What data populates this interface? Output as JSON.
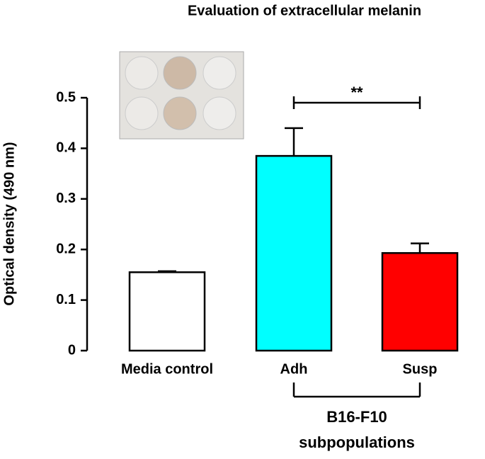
{
  "chart_data": {
    "type": "bar",
    "title": "Evaluation of extracellular melanin",
    "y_label": "Optical density (490 nm)",
    "categories": [
      "Media control",
      "Adh",
      "Susp"
    ],
    "values": [
      0.155,
      0.385,
      0.193
    ],
    "errors": [
      0.002,
      0.055,
      0.019
    ],
    "colors": [
      "#ffffff",
      "#00ffff",
      "#ff0000"
    ],
    "ylim": [
      0,
      0.5
    ],
    "yticks": [
      0,
      0.1,
      0.2,
      0.3,
      0.4,
      0.5
    ],
    "significance": {
      "from": 1,
      "to": 2,
      "label": "**"
    },
    "group": {
      "from": 1,
      "to": 2,
      "label_lines": [
        "B16-F10",
        "subpopulations"
      ]
    }
  }
}
